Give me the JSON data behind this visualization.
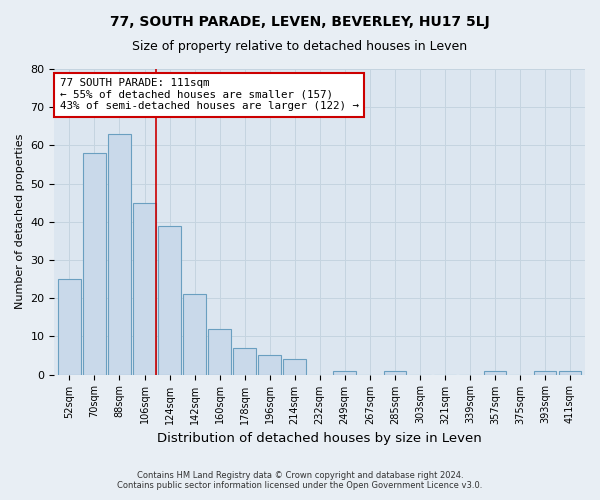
{
  "title": "77, SOUTH PARADE, LEVEN, BEVERLEY, HU17 5LJ",
  "subtitle": "Size of property relative to detached houses in Leven",
  "xlabel": "Distribution of detached houses by size in Leven",
  "ylabel": "Number of detached properties",
  "bar_labels": [
    "52sqm",
    "70sqm",
    "88sqm",
    "106sqm",
    "124sqm",
    "142sqm",
    "160sqm",
    "178sqm",
    "196sqm",
    "214sqm",
    "232sqm",
    "249sqm",
    "267sqm",
    "285sqm",
    "303sqm",
    "321sqm",
    "339sqm",
    "357sqm",
    "375sqm",
    "393sqm",
    "411sqm"
  ],
  "bar_values": [
    25,
    58,
    63,
    45,
    39,
    21,
    12,
    7,
    5,
    4,
    0,
    1,
    0,
    1,
    0,
    0,
    0,
    1,
    0,
    1,
    1
  ],
  "bar_color": "#c9d9ea",
  "bar_edge_color": "#6a9fc0",
  "vline_x_index": 3,
  "vline_color": "#cc0000",
  "annotation_title": "77 SOUTH PARADE: 111sqm",
  "annotation_line1": "← 55% of detached houses are smaller (157)",
  "annotation_line2": "43% of semi-detached houses are larger (122) →",
  "annotation_box_color": "#ffffff",
  "annotation_box_edge": "#cc0000",
  "ylim": [
    0,
    80
  ],
  "yticks": [
    0,
    10,
    20,
    30,
    40,
    50,
    60,
    70,
    80
  ],
  "footer1": "Contains HM Land Registry data © Crown copyright and database right 2024.",
  "footer2": "Contains public sector information licensed under the Open Government Licence v3.0.",
  "bg_color": "#e8eef4",
  "plot_bg_color": "#dce6f0",
  "grid_color": "#c5d4e0"
}
